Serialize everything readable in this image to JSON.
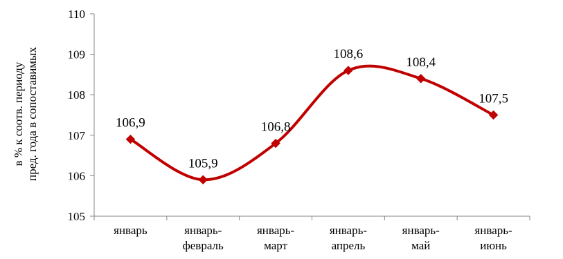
{
  "chart_data": {
    "type": "line",
    "categories": [
      [
        "январь"
      ],
      [
        "январь-",
        "февраль"
      ],
      [
        "январь-",
        "март"
      ],
      [
        "январь-",
        "апрель"
      ],
      [
        "январь-",
        "май"
      ],
      [
        "январь-",
        "июнь"
      ]
    ],
    "series": [
      {
        "values": [
          106.9,
          105.9,
          106.8,
          108.6,
          108.4,
          107.5
        ],
        "color": "#c00000"
      }
    ],
    "data_labels": [
      "106,9",
      "105,9",
      "106,8",
      "108,6",
      "108,4",
      "107,5"
    ],
    "ylabel_lines": [
      "в % к соотв. периоду",
      "пред. года в сопоставимых"
    ],
    "xlabel": "",
    "ylim": [
      105,
      110
    ],
    "yticks": [
      105,
      106,
      107,
      108,
      109,
      110
    ],
    "ytick_labels": [
      "105",
      "106",
      "107",
      "108",
      "109",
      "110"
    ],
    "grid": false,
    "legend": "none",
    "smooth": true,
    "marker": "diamond"
  }
}
